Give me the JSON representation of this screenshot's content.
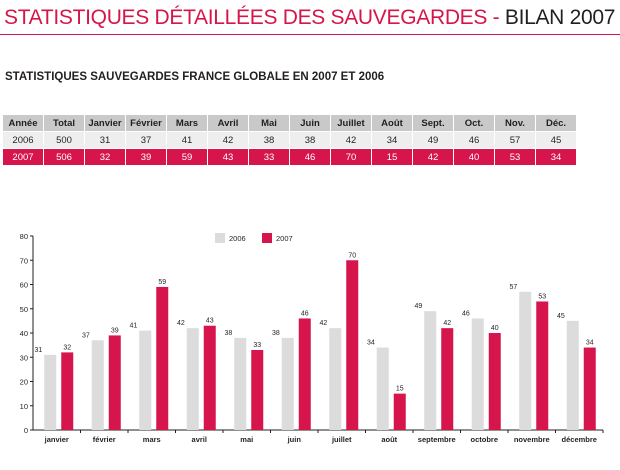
{
  "header": {
    "title_part1": "STATISTIQUES DÉTAILLÉES DES SAUVEGARDES",
    "title_sep": " - ",
    "title_part2": "BILAN 2007"
  },
  "table": {
    "heading": "STATISTIQUES SAUVEGARDES FRANCE GLOBALE EN 2007 ET 2006",
    "columns": [
      "Année",
      "Total",
      "Janvier",
      "Février",
      "Mars",
      "Avril",
      "Mai",
      "Juin",
      "Juillet",
      "Août",
      "Sept.",
      "Oct.",
      "Nov.",
      "Déc."
    ],
    "rows": [
      [
        "2006",
        "500",
        "31",
        "37",
        "41",
        "42",
        "38",
        "38",
        "42",
        "34",
        "49",
        "46",
        "57",
        "45"
      ],
      [
        "2007",
        "506",
        "32",
        "39",
        "59",
        "43",
        "33",
        "46",
        "70",
        "15",
        "42",
        "40",
        "53",
        "34"
      ]
    ]
  },
  "chart_data": {
    "type": "bar",
    "categories": [
      "janvier",
      "février",
      "mars",
      "avril",
      "mai",
      "juin",
      "juillet",
      "août",
      "septembre",
      "octobre",
      "novembre",
      "décembre"
    ],
    "series": [
      {
        "name": "2006",
        "values": [
          31,
          37,
          41,
          42,
          38,
          38,
          42,
          34,
          49,
          46,
          57,
          45
        ],
        "color": "#dcdcdc"
      },
      {
        "name": "2007",
        "values": [
          32,
          39,
          59,
          43,
          33,
          46,
          70,
          15,
          42,
          40,
          53,
          34
        ],
        "color": "#d5154b"
      }
    ],
    "yticks": [
      0,
      10,
      20,
      30,
      40,
      50,
      60,
      70,
      80
    ],
    "ylim": [
      0,
      80
    ],
    "legend": "top-center",
    "grid": false,
    "data_labels": true
  }
}
